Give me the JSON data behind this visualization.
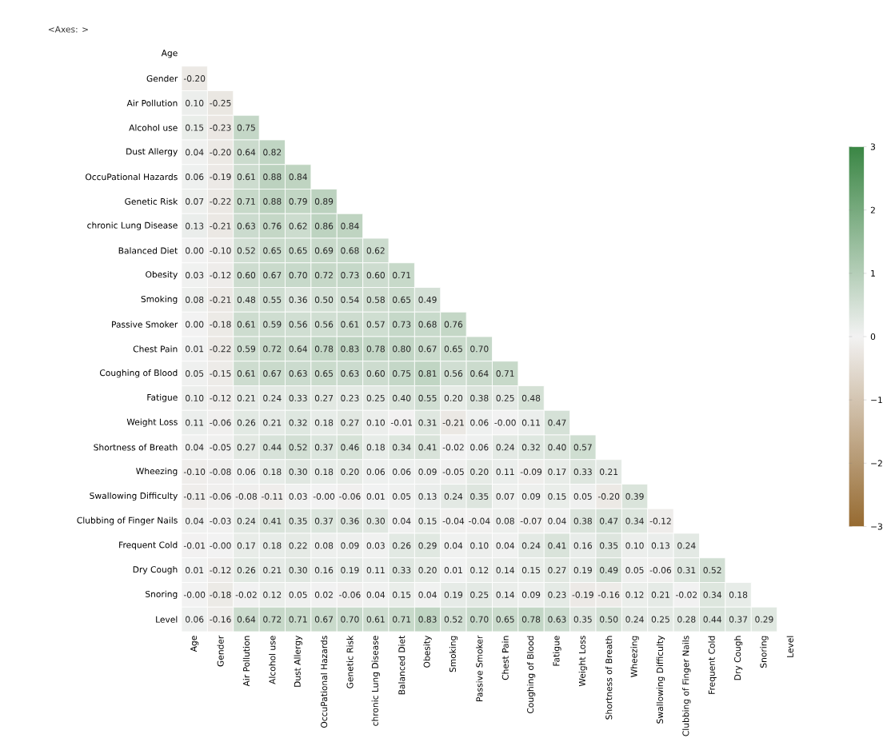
{
  "chart_data": {
    "type": "heatmap",
    "annotations": [
      "<Axes: >"
    ],
    "categories": [
      "Age",
      "Gender",
      "Air Pollution",
      "Alcohol use",
      "Dust Allergy",
      "OccuPational Hazards",
      "Genetic Risk",
      "chronic Lung Disease",
      "Balanced Diet",
      "Obesity",
      "Smoking",
      "Passive Smoker",
      "Chest Pain",
      "Coughing of Blood",
      "Fatigue",
      "Weight Loss",
      "Shortness of Breath",
      "Wheezing",
      "Swallowing Difficulty",
      "Clubbing of Finger Nails",
      "Frequent Cold",
      "Dry Cough",
      "Snoring",
      "Level"
    ],
    "y_categories": [
      "Age",
      "Gender",
      "Air Pollution",
      "Alcohol use",
      "Dust Allergy",
      "OccuPational Hazards",
      "Genetic Risk",
      "chronic Lung Disease",
      "Balanced Diet",
      "Obesity",
      "Smoking",
      "Passive Smoker",
      "Chest Pain",
      "Coughing of Blood",
      "Fatigue",
      "Weight Loss",
      "Shortness of Breath",
      "Wheezing",
      "Swallowing Difficulty",
      "Clubbing of Finger Nails",
      "Frequent Cold",
      "Dry Cough",
      "Snoring",
      "Level"
    ],
    "cells": [
      [
        null,
        null,
        null,
        null,
        null,
        null,
        null,
        null,
        null,
        null,
        null,
        null,
        null,
        null,
        null,
        null,
        null,
        null,
        null,
        null,
        null,
        null,
        null,
        null
      ],
      [
        -0.2,
        null,
        null,
        null,
        null,
        null,
        null,
        null,
        null,
        null,
        null,
        null,
        null,
        null,
        null,
        null,
        null,
        null,
        null,
        null,
        null,
        null,
        null,
        null
      ],
      [
        0.1,
        -0.25,
        null,
        null,
        null,
        null,
        null,
        null,
        null,
        null,
        null,
        null,
        null,
        null,
        null,
        null,
        null,
        null,
        null,
        null,
        null,
        null,
        null,
        null
      ],
      [
        0.15,
        -0.23,
        0.75,
        null,
        null,
        null,
        null,
        null,
        null,
        null,
        null,
        null,
        null,
        null,
        null,
        null,
        null,
        null,
        null,
        null,
        null,
        null,
        null,
        null
      ],
      [
        0.04,
        -0.2,
        0.64,
        0.82,
        null,
        null,
        null,
        null,
        null,
        null,
        null,
        null,
        null,
        null,
        null,
        null,
        null,
        null,
        null,
        null,
        null,
        null,
        null,
        null
      ],
      [
        0.06,
        -0.19,
        0.61,
        0.88,
        0.84,
        null,
        null,
        null,
        null,
        null,
        null,
        null,
        null,
        null,
        null,
        null,
        null,
        null,
        null,
        null,
        null,
        null,
        null,
        null
      ],
      [
        0.07,
        -0.22,
        0.71,
        0.88,
        0.79,
        0.89,
        null,
        null,
        null,
        null,
        null,
        null,
        null,
        null,
        null,
        null,
        null,
        null,
        null,
        null,
        null,
        null,
        null,
        null
      ],
      [
        0.13,
        -0.21,
        0.63,
        0.76,
        0.62,
        0.86,
        0.84,
        null,
        null,
        null,
        null,
        null,
        null,
        null,
        null,
        null,
        null,
        null,
        null,
        null,
        null,
        null,
        null,
        null
      ],
      [
        0.0,
        -0.1,
        0.52,
        0.65,
        0.65,
        0.69,
        0.68,
        0.62,
        null,
        null,
        null,
        null,
        null,
        null,
        null,
        null,
        null,
        null,
        null,
        null,
        null,
        null,
        null,
        null
      ],
      [
        0.03,
        -0.12,
        0.6,
        0.67,
        0.7,
        0.72,
        0.73,
        0.6,
        0.71,
        null,
        null,
        null,
        null,
        null,
        null,
        null,
        null,
        null,
        null,
        null,
        null,
        null,
        null,
        null
      ],
      [
        0.08,
        -0.21,
        0.48,
        0.55,
        0.36,
        0.5,
        0.54,
        0.58,
        0.65,
        0.49,
        null,
        null,
        null,
        null,
        null,
        null,
        null,
        null,
        null,
        null,
        null,
        null,
        null,
        null
      ],
      [
        0.0,
        -0.18,
        0.61,
        0.59,
        0.56,
        0.56,
        0.61,
        0.57,
        0.73,
        0.68,
        0.76,
        null,
        null,
        null,
        null,
        null,
        null,
        null,
        null,
        null,
        null,
        null,
        null,
        null
      ],
      [
        0.01,
        -0.22,
        0.59,
        0.72,
        0.64,
        0.78,
        0.83,
        0.78,
        0.8,
        0.67,
        0.65,
        0.7,
        null,
        null,
        null,
        null,
        null,
        null,
        null,
        null,
        null,
        null,
        null,
        null
      ],
      [
        0.05,
        -0.15,
        0.61,
        0.67,
        0.63,
        0.65,
        0.63,
        0.6,
        0.75,
        0.81,
        0.56,
        0.64,
        0.71,
        null,
        null,
        null,
        null,
        null,
        null,
        null,
        null,
        null,
        null,
        null
      ],
      [
        0.1,
        -0.12,
        0.21,
        0.24,
        0.33,
        0.27,
        0.23,
        0.25,
        0.4,
        0.55,
        0.2,
        0.38,
        0.25,
        0.48,
        null,
        null,
        null,
        null,
        null,
        null,
        null,
        null,
        null,
        null
      ],
      [
        0.11,
        -0.06,
        0.26,
        0.21,
        0.32,
        0.18,
        0.27,
        0.1,
        -0.01,
        0.31,
        -0.21,
        0.06,
        -0.0,
        0.11,
        0.47,
        null,
        null,
        null,
        null,
        null,
        null,
        null,
        null,
        null
      ],
      [
        0.04,
        -0.05,
        0.27,
        0.44,
        0.52,
        0.37,
        0.46,
        0.18,
        0.34,
        0.41,
        -0.02,
        0.06,
        0.24,
        0.32,
        0.4,
        0.57,
        null,
        null,
        null,
        null,
        null,
        null,
        null,
        null
      ],
      [
        -0.1,
        -0.08,
        0.06,
        0.18,
        0.3,
        0.18,
        0.2,
        0.06,
        0.06,
        0.09,
        -0.05,
        0.2,
        0.11,
        -0.09,
        0.17,
        0.33,
        0.21,
        null,
        null,
        null,
        null,
        null,
        null,
        null
      ],
      [
        -0.11,
        -0.06,
        -0.08,
        -0.11,
        0.03,
        -0.0,
        -0.06,
        0.01,
        0.05,
        0.13,
        0.24,
        0.35,
        0.07,
        0.09,
        0.15,
        0.05,
        -0.2,
        0.39,
        null,
        null,
        null,
        null,
        null,
        null
      ],
      [
        0.04,
        -0.03,
        0.24,
        0.41,
        0.35,
        0.37,
        0.36,
        0.3,
        0.04,
        0.15,
        -0.04,
        -0.04,
        0.08,
        -0.07,
        0.04,
        0.38,
        0.47,
        0.34,
        -0.12,
        null,
        null,
        null,
        null,
        null
      ],
      [
        -0.01,
        -0.0,
        0.17,
        0.18,
        0.22,
        0.08,
        0.09,
        0.03,
        0.26,
        0.29,
        0.04,
        0.1,
        0.04,
        0.24,
        0.41,
        0.16,
        0.35,
        0.1,
        0.13,
        0.24,
        null,
        null,
        null,
        null
      ],
      [
        0.01,
        -0.12,
        0.26,
        0.21,
        0.3,
        0.16,
        0.19,
        0.11,
        0.33,
        0.2,
        0.01,
        0.12,
        0.14,
        0.15,
        0.27,
        0.19,
        0.49,
        0.05,
        -0.06,
        0.31,
        0.52,
        null,
        null,
        null
      ],
      [
        -0.0,
        -0.18,
        -0.02,
        0.12,
        0.05,
        0.02,
        -0.06,
        0.04,
        0.15,
        0.04,
        0.19,
        0.25,
        0.14,
        0.09,
        0.23,
        -0.19,
        -0.16,
        0.12,
        0.21,
        -0.02,
        0.34,
        0.18,
        null,
        null
      ],
      [
        0.06,
        -0.16,
        0.64,
        0.72,
        0.71,
        0.67,
        0.7,
        0.61,
        0.71,
        0.83,
        0.52,
        0.7,
        0.65,
        0.78,
        0.63,
        0.35,
        0.5,
        0.24,
        0.25,
        0.28,
        0.44,
        0.37,
        0.29,
        null
      ]
    ],
    "cell_labels": [
      [
        null,
        null,
        null,
        null,
        null,
        null,
        null,
        null,
        null,
        null,
        null,
        null,
        null,
        null,
        null,
        null,
        null,
        null,
        null,
        null,
        null,
        null,
        null,
        null
      ],
      [
        "-0.20",
        null,
        null,
        null,
        null,
        null,
        null,
        null,
        null,
        null,
        null,
        null,
        null,
        null,
        null,
        null,
        null,
        null,
        null,
        null,
        null,
        null,
        null,
        null
      ],
      [
        "0.10",
        "-0.25",
        null,
        null,
        null,
        null,
        null,
        null,
        null,
        null,
        null,
        null,
        null,
        null,
        null,
        null,
        null,
        null,
        null,
        null,
        null,
        null,
        null,
        null
      ],
      [
        "0.15",
        "-0.23",
        "0.75",
        null,
        null,
        null,
        null,
        null,
        null,
        null,
        null,
        null,
        null,
        null,
        null,
        null,
        null,
        null,
        null,
        null,
        null,
        null,
        null,
        null
      ],
      [
        "0.04",
        "-0.20",
        "0.64",
        "0.82",
        null,
        null,
        null,
        null,
        null,
        null,
        null,
        null,
        null,
        null,
        null,
        null,
        null,
        null,
        null,
        null,
        null,
        null,
        null,
        null
      ],
      [
        "0.06",
        "-0.19",
        "0.61",
        "0.88",
        "0.84",
        null,
        null,
        null,
        null,
        null,
        null,
        null,
        null,
        null,
        null,
        null,
        null,
        null,
        null,
        null,
        null,
        null,
        null,
        null
      ],
      [
        "0.07",
        "-0.22",
        "0.71",
        "0.88",
        "0.79",
        "0.89",
        null,
        null,
        null,
        null,
        null,
        null,
        null,
        null,
        null,
        null,
        null,
        null,
        null,
        null,
        null,
        null,
        null,
        null
      ],
      [
        "0.13",
        "-0.21",
        "0.63",
        "0.76",
        "0.62",
        "0.86",
        "0.84",
        null,
        null,
        null,
        null,
        null,
        null,
        null,
        null,
        null,
        null,
        null,
        null,
        null,
        null,
        null,
        null,
        null
      ],
      [
        "0.00",
        "-0.10",
        "0.52",
        "0.65",
        "0.65",
        "0.69",
        "0.68",
        "0.62",
        null,
        null,
        null,
        null,
        null,
        null,
        null,
        null,
        null,
        null,
        null,
        null,
        null,
        null,
        null,
        null
      ],
      [
        "0.03",
        "-0.12",
        "0.60",
        "0.67",
        "0.70",
        "0.72",
        "0.73",
        "0.60",
        "0.71",
        null,
        null,
        null,
        null,
        null,
        null,
        null,
        null,
        null,
        null,
        null,
        null,
        null,
        null,
        null
      ],
      [
        "0.08",
        "-0.21",
        "0.48",
        "0.55",
        "0.36",
        "0.50",
        "0.54",
        "0.58",
        "0.65",
        "0.49",
        null,
        null,
        null,
        null,
        null,
        null,
        null,
        null,
        null,
        null,
        null,
        null,
        null,
        null
      ],
      [
        "0.00",
        "-0.18",
        "0.61",
        "0.59",
        "0.56",
        "0.56",
        "0.61",
        "0.57",
        "0.73",
        "0.68",
        "0.76",
        null,
        null,
        null,
        null,
        null,
        null,
        null,
        null,
        null,
        null,
        null,
        null,
        null
      ],
      [
        "0.01",
        "-0.22",
        "0.59",
        "0.72",
        "0.64",
        "0.78",
        "0.83",
        "0.78",
        "0.80",
        "0.67",
        "0.65",
        "0.70",
        null,
        null,
        null,
        null,
        null,
        null,
        null,
        null,
        null,
        null,
        null,
        null
      ],
      [
        "0.05",
        "-0.15",
        "0.61",
        "0.67",
        "0.63",
        "0.65",
        "0.63",
        "0.60",
        "0.75",
        "0.81",
        "0.56",
        "0.64",
        "0.71",
        null,
        null,
        null,
        null,
        null,
        null,
        null,
        null,
        null,
        null,
        null
      ],
      [
        "0.10",
        "-0.12",
        "0.21",
        "0.24",
        "0.33",
        "0.27",
        "0.23",
        "0.25",
        "0.40",
        "0.55",
        "0.20",
        "0.38",
        "0.25",
        "0.48",
        null,
        null,
        null,
        null,
        null,
        null,
        null,
        null,
        null,
        null
      ],
      [
        "0.11",
        "-0.06",
        "0.26",
        "0.21",
        "0.32",
        "0.18",
        "0.27",
        "0.10",
        "-0.01",
        "0.31",
        "-0.21",
        "0.06",
        "-0.00",
        "0.11",
        "0.47",
        null,
        null,
        null,
        null,
        null,
        null,
        null,
        null,
        null
      ],
      [
        "0.04",
        "-0.05",
        "0.27",
        "0.44",
        "0.52",
        "0.37",
        "0.46",
        "0.18",
        "0.34",
        "0.41",
        "-0.02",
        "0.06",
        "0.24",
        "0.32",
        "0.40",
        "0.57",
        null,
        null,
        null,
        null,
        null,
        null,
        null,
        null
      ],
      [
        "-0.10",
        "-0.08",
        "0.06",
        "0.18",
        "0.30",
        "0.18",
        "0.20",
        "0.06",
        "0.06",
        "0.09",
        "-0.05",
        "0.20",
        "0.11",
        "-0.09",
        "0.17",
        "0.33",
        "0.21",
        null,
        null,
        null,
        null,
        null,
        null,
        null
      ],
      [
        "-0.11",
        "-0.06",
        "-0.08",
        "-0.11",
        "0.03",
        "-0.00",
        "-0.06",
        "0.01",
        "0.05",
        "0.13",
        "0.24",
        "0.35",
        "0.07",
        "0.09",
        "0.15",
        "0.05",
        "-0.20",
        "0.39",
        null,
        null,
        null,
        null,
        null,
        null
      ],
      [
        "0.04",
        "-0.03",
        "0.24",
        "0.41",
        "0.35",
        "0.37",
        "0.36",
        "0.30",
        "0.04",
        "0.15",
        "-0.04",
        "-0.04",
        "0.08",
        "-0.07",
        "0.04",
        "0.38",
        "0.47",
        "0.34",
        "-0.12",
        null,
        null,
        null,
        null,
        null
      ],
      [
        "-0.01",
        "-0.00",
        "0.17",
        "0.18",
        "0.22",
        "0.08",
        "0.09",
        "0.03",
        "0.26",
        "0.29",
        "0.04",
        "0.10",
        "0.04",
        "0.24",
        "0.41",
        "0.16",
        "0.35",
        "0.10",
        "0.13",
        "0.24",
        null,
        null,
        null,
        null
      ],
      [
        "0.01",
        "-0.12",
        "0.26",
        "0.21",
        "0.30",
        "0.16",
        "0.19",
        "0.11",
        "0.33",
        "0.20",
        "0.01",
        "0.12",
        "0.14",
        "0.15",
        "0.27",
        "0.19",
        "0.49",
        "0.05",
        "-0.06",
        "0.31",
        "0.52",
        null,
        null,
        null
      ],
      [
        "-0.00",
        "-0.18",
        "-0.02",
        "0.12",
        "0.05",
        "0.02",
        "-0.06",
        "0.04",
        "0.15",
        "0.04",
        "0.19",
        "0.25",
        "0.14",
        "0.09",
        "0.23",
        "-0.19",
        "-0.16",
        "0.12",
        "0.21",
        "-0.02",
        "0.34",
        "0.18",
        null,
        null
      ],
      [
        "0.06",
        "-0.16",
        "0.64",
        "0.72",
        "0.71",
        "0.67",
        "0.70",
        "0.61",
        "0.71",
        "0.83",
        "0.52",
        "0.70",
        "0.65",
        "0.78",
        "0.63",
        "0.35",
        "0.50",
        "0.24",
        "0.25",
        "0.28",
        "0.44",
        "0.37",
        "0.29",
        null
      ]
    ],
    "data_labels": true,
    "clim": [
      -3,
      3
    ],
    "cticks": [
      {
        "value": -3,
        "label": "−3"
      },
      {
        "value": -2,
        "label": "−2"
      },
      {
        "value": -1,
        "label": "−1"
      },
      0,
      1,
      2,
      3
    ]
  }
}
